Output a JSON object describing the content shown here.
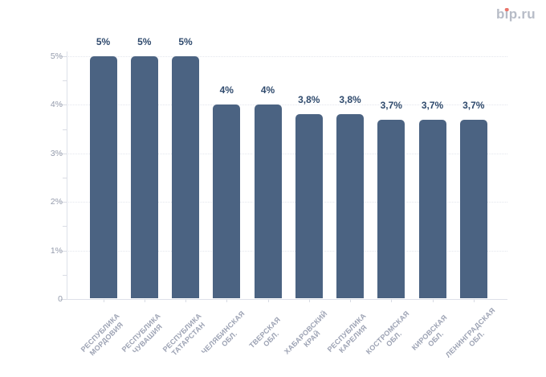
{
  "logo": {
    "pre": "b",
    "i": "i",
    "post": "p.ru"
  },
  "colors": {
    "background": "#ffffff",
    "bar": "#4b6382",
    "data_label": "#2f4a6d",
    "y_axis_label": "#949bac",
    "x_axis_label": "#9da3b4",
    "gridline": "#e3e6ed",
    "axis_line": "#dde0e8",
    "logo_gray": "#b7bcc7",
    "logo_dot_red": "#e9756b"
  },
  "chart_data": {
    "type": "bar",
    "title": "",
    "categories": [
      [
        "РЕСПУБЛИКА",
        "МОРДОВИЯ"
      ],
      [
        "РЕСПУБЛИКА",
        "ЧУВАШИЯ"
      ],
      [
        "РЕСПУБЛИКА",
        "ТАТАРСТАН"
      ],
      [
        "ЧЕЛЯБИНСКАЯ",
        "ОБЛ."
      ],
      [
        "ТВЕРСКАЯ",
        "ОБЛ."
      ],
      [
        "ХАБАРОВСКИЙ",
        "КРАЙ"
      ],
      [
        "РЕСПУБЛИКА",
        "КАРЕЛИЯ"
      ],
      [
        "КОСТРОМСКАЯ",
        "ОБЛ."
      ],
      [
        "КИРОВСКАЯ",
        "ОБЛ."
      ],
      [
        "ЛЕНИНГРАДСКАЯ",
        "ОБЛ."
      ]
    ],
    "values": [
      5,
      5,
      5,
      4,
      4,
      3.8,
      3.8,
      3.7,
      3.7,
      3.7
    ],
    "data_labels": [
      "5%",
      "5%",
      "5%",
      "4%",
      "4%",
      "3,8%",
      "3,8%",
      "3,7%",
      "3,7%",
      "3,7%"
    ],
    "xlabel": "",
    "ylabel": "",
    "y_axis": {
      "tick_labels": [
        "5%",
        "4%",
        "3%",
        "2%",
        "1%",
        "0"
      ],
      "tick_values": [
        5,
        4,
        3,
        2,
        1,
        0
      ],
      "minor_tick_values": [
        4.5,
        3.5,
        2.5,
        1.5,
        0.5
      ],
      "ylim": [
        0,
        5
      ],
      "unit": "%"
    },
    "grid": "horizontal dotted major gridlines",
    "legend_position": "none"
  }
}
